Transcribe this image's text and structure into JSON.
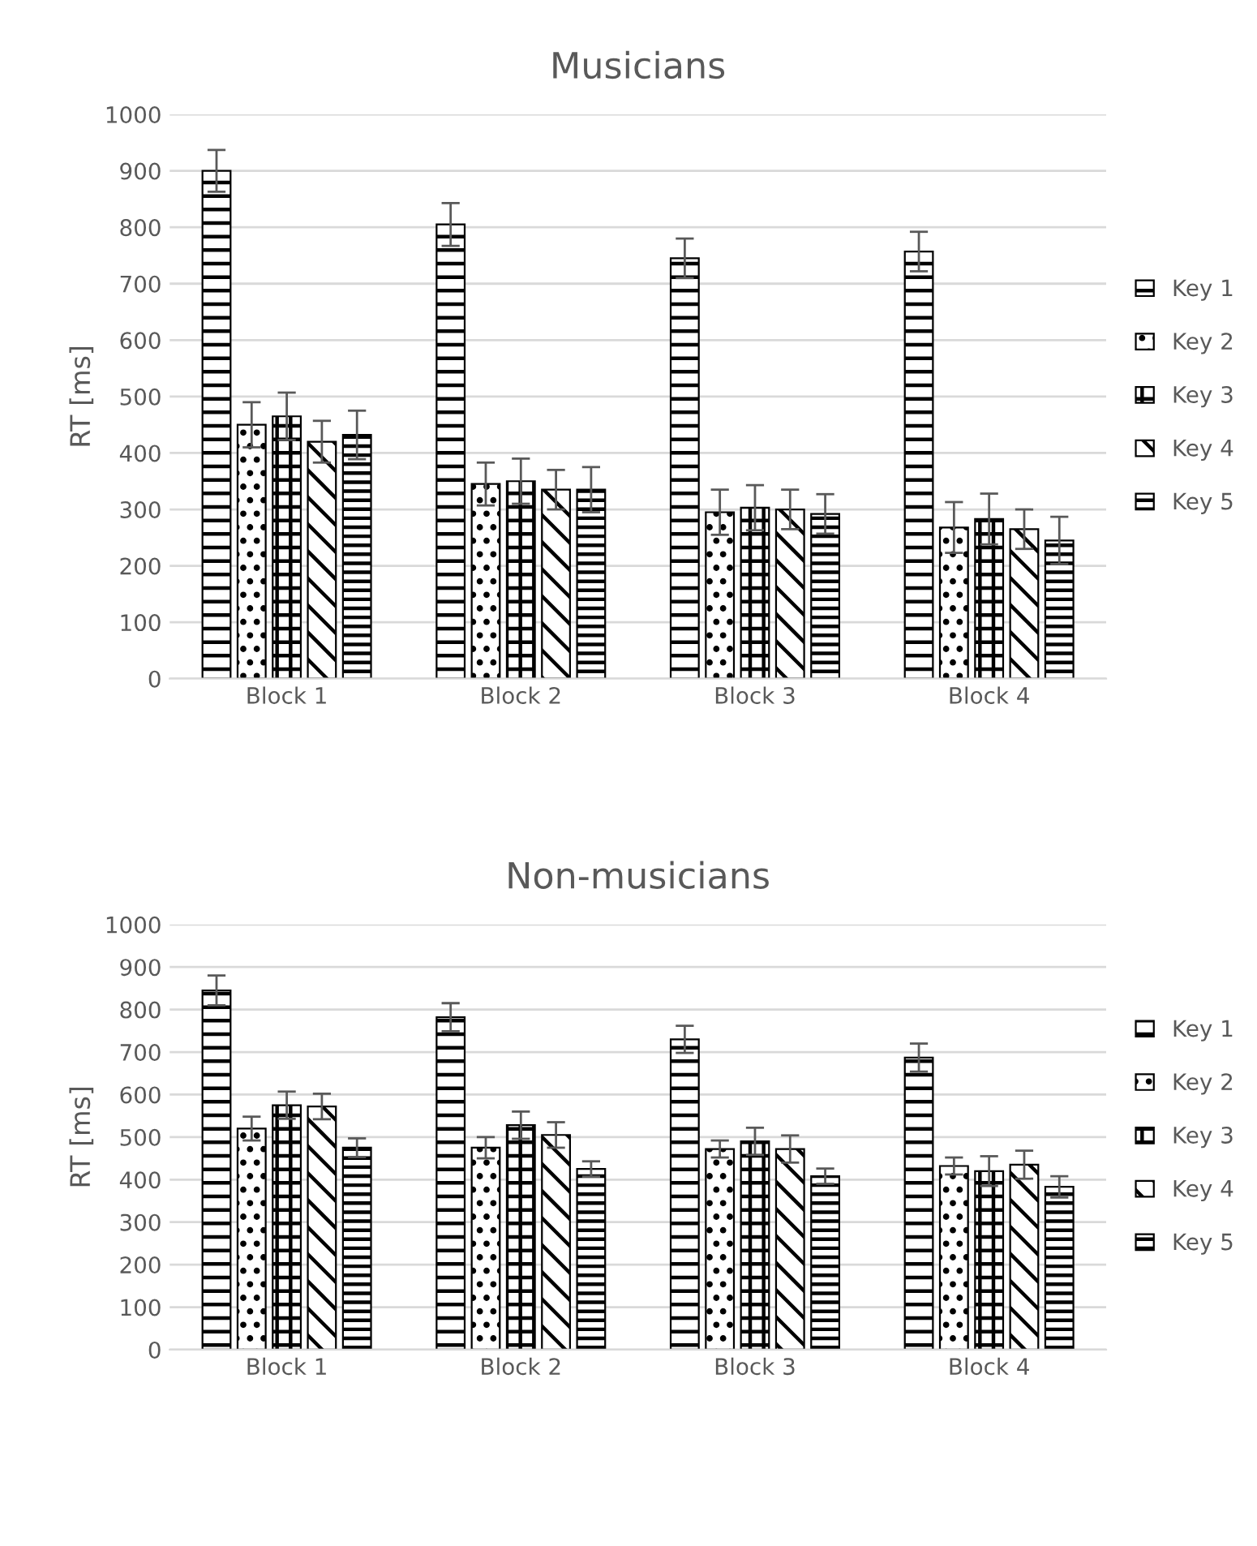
{
  "chart_data": [
    {
      "type": "bar",
      "title": "Musicians",
      "ylabel": "RT [ms]",
      "categories": [
        "Block 1",
        "Block 2",
        "Block 3",
        "Block 4"
      ],
      "ylim": [
        0,
        1000
      ],
      "yticks": [
        0,
        100,
        200,
        300,
        400,
        500,
        600,
        700,
        800,
        900,
        1000
      ],
      "grid": "y",
      "legend": "right",
      "series": [
        {
          "name": "Key 1",
          "color": "#000000",
          "values": [
            900,
            805,
            745,
            757
          ],
          "errors": [
            37,
            38,
            35,
            35
          ]
        },
        {
          "name": "Key 2",
          "color": "#000000",
          "values": [
            450,
            345,
            295,
            268
          ],
          "errors": [
            40,
            38,
            40,
            45
          ]
        },
        {
          "name": "Key 3",
          "color": "#000000",
          "values": [
            465,
            350,
            303,
            283
          ],
          "errors": [
            42,
            40,
            40,
            45
          ]
        },
        {
          "name": "Key 4",
          "color": "#000000",
          "values": [
            420,
            335,
            300,
            265
          ],
          "errors": [
            37,
            35,
            35,
            35
          ]
        },
        {
          "name": "Key 5",
          "color": "#000000",
          "values": [
            432,
            335,
            292,
            245
          ],
          "errors": [
            43,
            40,
            35,
            42
          ]
        }
      ]
    },
    {
      "type": "bar",
      "title": "Non-musicians",
      "ylabel": "RT [ms]",
      "categories": [
        "Block 1",
        "Block 2",
        "Block 3",
        "Block 4"
      ],
      "ylim": [
        0,
        1000
      ],
      "yticks": [
        0,
        100,
        200,
        300,
        400,
        500,
        600,
        700,
        800,
        900,
        1000
      ],
      "grid": "y",
      "legend": "right",
      "series": [
        {
          "name": "Key 1",
          "color": "#000000",
          "values": [
            845,
            782,
            730,
            687
          ],
          "errors": [
            35,
            33,
            32,
            33
          ]
        },
        {
          "name": "Key 2",
          "color": "#000000",
          "values": [
            520,
            475,
            472,
            432
          ],
          "errors": [
            28,
            25,
            20,
            20
          ]
        },
        {
          "name": "Key 3",
          "color": "#000000",
          "values": [
            575,
            528,
            490,
            420
          ],
          "errors": [
            32,
            32,
            32,
            35
          ]
        },
        {
          "name": "Key 4",
          "color": "#000000",
          "values": [
            572,
            505,
            472,
            435
          ],
          "errors": [
            30,
            30,
            32,
            33
          ]
        },
        {
          "name": "Key 5",
          "color": "#000000",
          "values": [
            475,
            425,
            408,
            383
          ],
          "errors": [
            22,
            18,
            18,
            25
          ]
        }
      ]
    }
  ]
}
